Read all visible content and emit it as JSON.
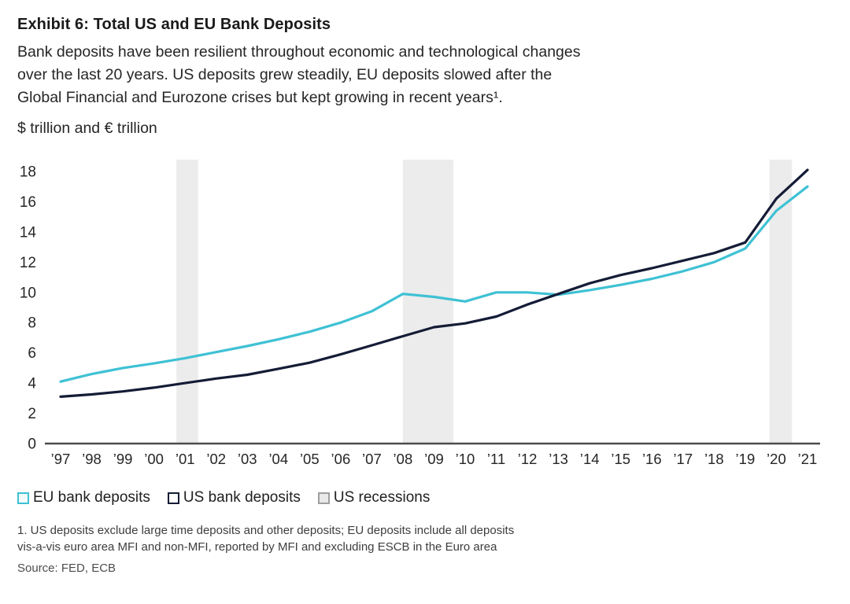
{
  "header": {
    "title": "Exhibit 6: Total US and EU Bank Deposits",
    "subtitle_lines": [
      "Bank deposits have been resilient throughout economic and technological changes",
      "over the last 20 years. US deposits grew steadily, EU deposits slowed after the",
      "Global Financial and Eurozone crises but kept growing in recent years¹."
    ],
    "units_label": "$ trillion and € trillion"
  },
  "legend": {
    "items": [
      {
        "label": "EU bank deposits",
        "type": "line",
        "color": "#3fc1d4",
        "fill": "#f2fbfd"
      },
      {
        "label": "US bank deposits",
        "type": "line",
        "color": "#141c36",
        "fill": "#ffffff"
      },
      {
        "label": "US recessions",
        "type": "band",
        "color": "#9e9e9e",
        "fill": "#e9e9e9"
      }
    ]
  },
  "footnotes": {
    "line1": "1. US deposits exclude large time deposits and other deposits; EU deposits include all deposits",
    "line2": "vis-a-vis euro area MFI and non-MFI, reported by MFI and excluding ESCB in the Euro area",
    "source": "Source: FED, ECB"
  },
  "chart_data": {
    "type": "line",
    "title": "Exhibit 6: Total US and EU Bank Deposits",
    "ylabel": "$ trillion and € trillion",
    "xlabel": "",
    "grid": false,
    "legend_position": "bottom",
    "ylim": [
      0,
      18
    ],
    "y_ticks": [
      0,
      2,
      4,
      6,
      8,
      10,
      12,
      14,
      16,
      18
    ],
    "x": [
      1997,
      1998,
      1999,
      2000,
      2001,
      2002,
      2003,
      2004,
      2005,
      2006,
      2007,
      2008,
      2009,
      2010,
      2011,
      2012,
      2013,
      2014,
      2015,
      2016,
      2017,
      2018,
      2019,
      2020,
      2021
    ],
    "x_tick_labels": [
      "’97",
      "’98",
      "’99",
      "’00",
      "’01",
      "’02",
      "’03",
      "’04",
      "’05",
      "’06",
      "’07",
      "’08",
      "’09",
      "’10",
      "’11",
      "’12",
      "’13",
      "’14",
      "’15",
      "’16",
      "’17",
      "’18",
      "’19",
      "’20",
      "’21"
    ],
    "series": [
      {
        "name": "EU bank deposits",
        "color": "#3fc1d4",
        "values": [
          4.1,
          4.6,
          5.0,
          5.3,
          5.65,
          6.05,
          6.45,
          6.9,
          7.4,
          8.0,
          8.75,
          9.9,
          9.7,
          9.4,
          10.0,
          10.0,
          9.85,
          10.15,
          10.5,
          10.9,
          11.4,
          12.0,
          12.9,
          15.4,
          17.0
        ]
      },
      {
        "name": "US bank deposits",
        "color": "#141c36",
        "values": [
          3.1,
          3.25,
          3.45,
          3.7,
          4.0,
          4.3,
          4.55,
          4.95,
          5.35,
          5.9,
          6.5,
          7.1,
          7.7,
          7.95,
          8.4,
          9.2,
          9.9,
          10.6,
          11.15,
          11.6,
          12.1,
          12.6,
          13.3,
          16.2,
          18.1
        ]
      }
    ],
    "recession_bands": [
      [
        2000.72,
        2001.42
      ],
      [
        2008.0,
        2009.62
      ],
      [
        2019.78,
        2020.5
      ]
    ],
    "band_color": "#ececec",
    "axis_color": "#4d4d4d",
    "tick_label_color": "#262626"
  }
}
